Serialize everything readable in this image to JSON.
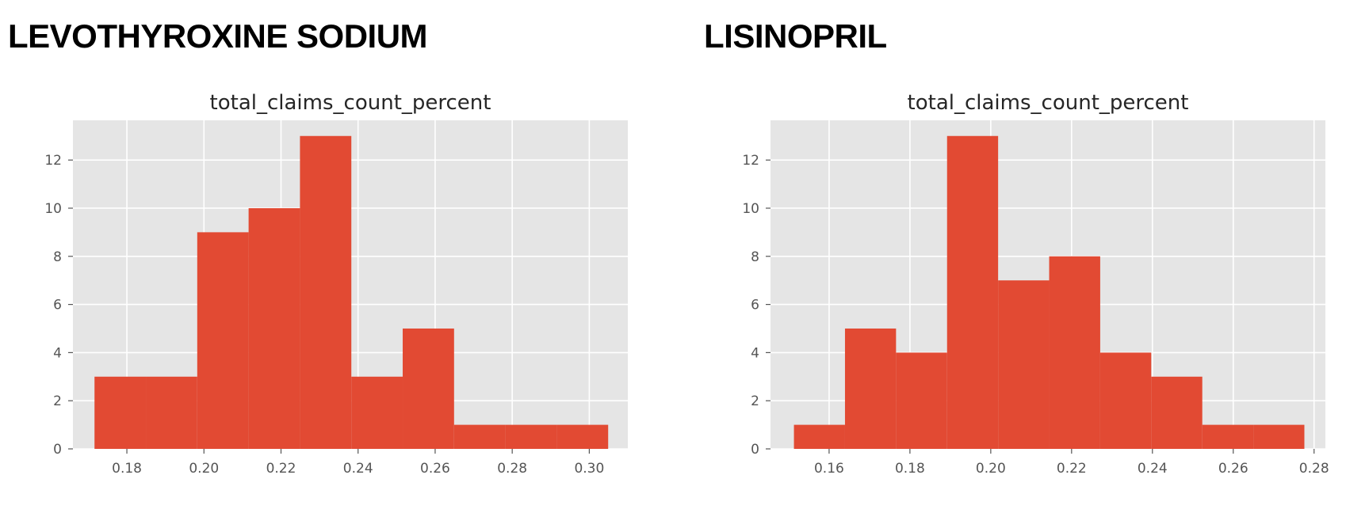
{
  "headings": [
    "LEVOTHYROXINE SODIUM",
    "LISINOPRIL"
  ],
  "colors": {
    "bar": "#e24a33",
    "plot_background": "#e5e5e5",
    "grid": "#ffffff",
    "tick": "#555555"
  },
  "chart_data": [
    {
      "type": "bar",
      "title": "total_claims_count_percent",
      "xlabel": "",
      "ylabel": "",
      "grid": true,
      "bin_edges": [
        0.1716,
        0.18493,
        0.19826,
        0.21159,
        0.22492,
        0.23825,
        0.25158,
        0.26491,
        0.27824,
        0.29157,
        0.3049
      ],
      "values": [
        3,
        3,
        9,
        10,
        13,
        3,
        5,
        1,
        1,
        1
      ],
      "xlim": [
        0.166,
        0.31
      ],
      "ylim": [
        0,
        13.65
      ],
      "xticks": [
        0.18,
        0.2,
        0.22,
        0.24,
        0.26,
        0.28,
        0.3
      ],
      "xtick_labels": [
        "0.18",
        "0.20",
        "0.22",
        "0.24",
        "0.26",
        "0.28",
        "0.30"
      ],
      "yticks": [
        0,
        2,
        4,
        6,
        8,
        10,
        12
      ],
      "ytick_labels": [
        "0",
        "2",
        "4",
        "6",
        "8",
        "10",
        "12"
      ]
    },
    {
      "type": "bar",
      "title": "total_claims_count_percent",
      "xlabel": "",
      "ylabel": "",
      "grid": true,
      "bin_edges": [
        0.1513,
        0.16393,
        0.17656,
        0.18919,
        0.20182,
        0.21445,
        0.22708,
        0.23971,
        0.25234,
        0.26497,
        0.2776
      ],
      "values": [
        1,
        5,
        4,
        13,
        7,
        8,
        4,
        3,
        1,
        1
      ],
      "xlim": [
        0.1455,
        0.2828
      ],
      "ylim": [
        0,
        13.65
      ],
      "xticks": [
        0.16,
        0.18,
        0.2,
        0.22,
        0.24,
        0.26,
        0.28
      ],
      "xtick_labels": [
        "0.16",
        "0.18",
        "0.20",
        "0.22",
        "0.24",
        "0.26",
        "0.28"
      ],
      "yticks": [
        0,
        2,
        4,
        6,
        8,
        10,
        12
      ],
      "ytick_labels": [
        "0",
        "2",
        "4",
        "6",
        "8",
        "10",
        "12"
      ]
    }
  ]
}
